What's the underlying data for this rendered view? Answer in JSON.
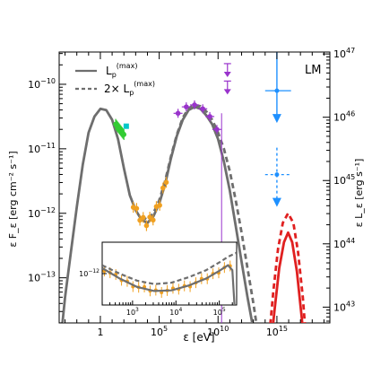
{
  "chart_data": {
    "type": "line",
    "title": "",
    "panel_label": "LM",
    "xlabel": "ε [eV]",
    "ylabel_left": "ε F_ε [erg cm⁻² s⁻¹]",
    "ylabel_right": "ε L_ε [erg s⁻¹]",
    "x_scale": "log",
    "y_scale": "log",
    "xlim_log10": [
      -3.5,
      19.5
    ],
    "ylim_log10": [
      -13.7,
      -9.5
    ],
    "right_axis_ylim_log10": [
      42.75,
      47.03
    ],
    "x_ticks": [
      {
        "label": "1",
        "base": "1",
        "exp": "0",
        "log10": 0
      },
      {
        "label": "10^5",
        "base": "10",
        "exp": "5",
        "log10": 5
      },
      {
        "label": "10^10",
        "base": "10",
        "exp": "10",
        "log10": 10
      },
      {
        "label": "10^15",
        "base": "10",
        "exp": "15",
        "log10": 15
      }
    ],
    "y_ticks_left": [
      {
        "label": "10^-10",
        "base": "10",
        "exp": "−10",
        "log10": -10
      },
      {
        "label": "10^-11",
        "base": "10",
        "exp": "−11",
        "log10": -11
      },
      {
        "label": "10^-12",
        "base": "10",
        "exp": "−12",
        "log10": -12
      },
      {
        "label": "10^-13",
        "base": "10",
        "exp": "−13",
        "log10": -13
      }
    ],
    "y_ticks_right": [
      {
        "label": "10^43",
        "base": "10",
        "exp": "43",
        "log10": 43
      },
      {
        "label": "10^44",
        "base": "10",
        "exp": "44",
        "log10": 44
      },
      {
        "label": "10^45",
        "base": "10",
        "exp": "45",
        "log10": 45
      },
      {
        "label": "10^46",
        "base": "10",
        "exp": "46",
        "log10": 46
      },
      {
        "label": "10^47",
        "base": "10",
        "exp": "47",
        "log10": 47
      }
    ],
    "legend": [
      {
        "label": "L_p^(max)",
        "text": "L",
        "sub": "p",
        "sup": "(max)",
        "style": "solid",
        "color": "#6e6e6e"
      },
      {
        "label": "2× L_p^(max)",
        "text": "2× L",
        "sub": "p",
        "sup": "(max)",
        "style": "dashed",
        "color": "#6e6e6e"
      }
    ],
    "legend_position": "top-left",
    "series": [
      {
        "name": "L_p^(max)",
        "style": "solid",
        "color": "#6e6e6e",
        "points": [
          [
            -3.5,
            -14.2
          ],
          [
            -3.0,
            -13.3
          ],
          [
            -2.5,
            -12.6
          ],
          [
            -2.0,
            -11.9
          ],
          [
            -1.5,
            -11.25
          ],
          [
            -1.0,
            -10.75
          ],
          [
            -0.5,
            -10.5
          ],
          [
            0.0,
            -10.38
          ],
          [
            0.5,
            -10.4
          ],
          [
            1.0,
            -10.55
          ],
          [
            1.5,
            -10.85
          ],
          [
            2.0,
            -11.3
          ],
          [
            2.5,
            -11.72
          ],
          [
            3.0,
            -11.95
          ],
          [
            3.5,
            -12.1
          ],
          [
            4.0,
            -12.15
          ],
          [
            4.5,
            -12.05
          ],
          [
            5.0,
            -11.85
          ],
          [
            5.5,
            -11.55
          ],
          [
            6.0,
            -11.15
          ],
          [
            6.5,
            -10.8
          ],
          [
            7.0,
            -10.55
          ],
          [
            7.5,
            -10.4
          ],
          [
            8.0,
            -10.35
          ],
          [
            8.5,
            -10.38
          ],
          [
            9.0,
            -10.48
          ],
          [
            9.5,
            -10.62
          ],
          [
            10.0,
            -10.85
          ],
          [
            10.5,
            -11.2
          ],
          [
            11.0,
            -11.65
          ],
          [
            11.5,
            -12.2
          ],
          [
            12.0,
            -12.75
          ],
          [
            12.5,
            -13.3
          ],
          [
            13.0,
            -13.8
          ],
          [
            13.3,
            -14.3
          ]
        ]
      },
      {
        "name": "2× L_p^(max)",
        "style": "dashed",
        "color": "#6e6e6e",
        "points": [
          [
            3.5,
            -12.05
          ],
          [
            4.0,
            -12.1
          ],
          [
            4.5,
            -12.0
          ],
          [
            5.0,
            -11.8
          ],
          [
            5.5,
            -11.5
          ],
          [
            6.0,
            -11.12
          ],
          [
            6.5,
            -10.78
          ],
          [
            7.0,
            -10.52
          ],
          [
            7.5,
            -10.37
          ],
          [
            8.0,
            -10.32
          ],
          [
            8.5,
            -10.34
          ],
          [
            9.0,
            -10.42
          ],
          [
            9.5,
            -10.55
          ],
          [
            10.0,
            -10.75
          ],
          [
            10.5,
            -11.0
          ],
          [
            11.0,
            -11.35
          ],
          [
            11.5,
            -11.8
          ],
          [
            12.0,
            -12.3
          ],
          [
            12.5,
            -12.85
          ],
          [
            13.0,
            -13.4
          ],
          [
            13.5,
            -14.0
          ]
        ]
      },
      {
        "name": "",
        "style": "solid",
        "color": "#e02020",
        "points": [
          [
            14.4,
            -14.2
          ],
          [
            14.8,
            -13.5
          ],
          [
            15.2,
            -12.85
          ],
          [
            15.6,
            -12.45
          ],
          [
            15.95,
            -12.3
          ],
          [
            16.3,
            -12.45
          ],
          [
            16.7,
            -12.9
          ],
          [
            17.1,
            -13.6
          ],
          [
            17.4,
            -14.2
          ]
        ]
      },
      {
        "name": "",
        "style": "dashed",
        "color": "#e02020",
        "points": [
          [
            14.3,
            -14.0
          ],
          [
            14.7,
            -13.2
          ],
          [
            15.1,
            -12.55
          ],
          [
            15.5,
            -12.15
          ],
          [
            15.95,
            -12.0
          ],
          [
            16.4,
            -12.15
          ],
          [
            16.8,
            -12.6
          ],
          [
            17.2,
            -13.3
          ],
          [
            17.5,
            -14.0
          ]
        ]
      }
    ],
    "data_points": [
      {
        "instrument_color": "#33cc33",
        "type": "band",
        "x_range": [
          1.3,
          2.0
        ],
        "y": [
          -10.62,
          -10.78
        ]
      },
      {
        "instrument_color": "#00c8c8",
        "type": "point",
        "x": 2.2,
        "y": -10.65
      },
      {
        "instrument_color": "#f0a020",
        "type": "band",
        "x_range": [
          2.8,
          5.6
        ],
        "y_start": -11.8,
        "y_end": -11.95
      },
      {
        "instrument_color": "#9933cc",
        "type": "points",
        "points": [
          [
            6.6,
            -10.45
          ],
          [
            7.3,
            -10.35
          ],
          [
            8.0,
            -10.32
          ],
          [
            8.7,
            -10.38
          ],
          [
            9.3,
            -10.5
          ],
          [
            9.9,
            -10.7
          ]
        ]
      },
      {
        "instrument_color": "#9933cc",
        "type": "upper_limits",
        "points": [
          [
            10.8,
            -9.68
          ],
          [
            10.8,
            -9.95
          ]
        ]
      },
      {
        "instrument_color": "#1e90ff",
        "type": "upper_limit",
        "x": 15.0,
        "y": -10.1,
        "x_err": [
          14.0,
          16.2
        ]
      },
      {
        "instrument_color": "#1e90ff",
        "type": "upper_limit_dashed",
        "x": 15.0,
        "y": -11.4,
        "x_err": [
          14.0,
          16.2
        ]
      }
    ],
    "inset": {
      "xlabel_ticks": [
        {
          "label": "10^3",
          "base": "10",
          "exp": "3",
          "log10": 3
        },
        {
          "label": "10^4",
          "base": "10",
          "exp": "4",
          "log10": 4
        },
        {
          "label": "10^5",
          "base": "10",
          "exp": "5",
          "log10": 5
        }
      ],
      "y_tick": {
        "label": "10^-12",
        "base": "10",
        "exp": "−12",
        "log10": -12
      },
      "xlim_log10": [
        2.3,
        5.4
      ],
      "ylim_log10": [
        -12.45,
        -11.55
      ]
    }
  }
}
